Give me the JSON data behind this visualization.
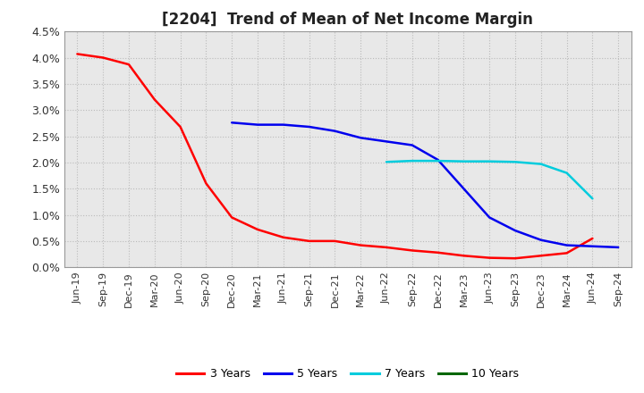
{
  "title": "[2204]  Trend of Mean of Net Income Margin",
  "x_labels": [
    "Jun-19",
    "Sep-19",
    "Dec-19",
    "Mar-20",
    "Jun-20",
    "Sep-20",
    "Dec-20",
    "Mar-21",
    "Jun-21",
    "Sep-21",
    "Dec-21",
    "Mar-22",
    "Jun-22",
    "Sep-22",
    "Dec-22",
    "Mar-23",
    "Jun-23",
    "Sep-23",
    "Dec-23",
    "Mar-24",
    "Jun-24",
    "Sep-24"
  ],
  "series": {
    "3 Years": {
      "color": "#FF0000",
      "data": [
        4.07,
        4.0,
        3.87,
        3.2,
        2.68,
        1.6,
        0.95,
        0.72,
        0.57,
        0.5,
        0.5,
        0.42,
        0.38,
        0.32,
        0.28,
        0.22,
        0.18,
        0.17,
        0.22,
        0.27,
        0.55,
        null
      ]
    },
    "5 Years": {
      "color": "#0000EE",
      "data": [
        null,
        null,
        null,
        null,
        null,
        null,
        2.76,
        2.72,
        2.72,
        2.68,
        2.6,
        2.47,
        2.4,
        2.33,
        2.05,
        1.5,
        0.95,
        0.7,
        0.52,
        0.42,
        0.4,
        0.38
      ]
    },
    "7 Years": {
      "color": "#00CCDD",
      "data": [
        null,
        null,
        null,
        null,
        null,
        null,
        null,
        null,
        null,
        null,
        null,
        null,
        2.01,
        2.03,
        2.03,
        2.02,
        2.02,
        2.01,
        1.97,
        1.8,
        1.31,
        null
      ]
    },
    "10 Years": {
      "color": "#006600",
      "data": [
        null,
        null,
        null,
        null,
        null,
        null,
        null,
        null,
        null,
        null,
        null,
        null,
        null,
        null,
        null,
        null,
        null,
        null,
        null,
        null,
        null,
        null
      ]
    }
  },
  "ylim": [
    0.0,
    0.045
  ],
  "yticks": [
    0.0,
    0.005,
    0.01,
    0.015,
    0.02,
    0.025,
    0.03,
    0.035,
    0.04,
    0.045
  ],
  "ytick_labels": [
    "0.0%",
    "0.5%",
    "1.0%",
    "1.5%",
    "2.0%",
    "2.5%",
    "3.0%",
    "3.5%",
    "4.0%",
    "4.5%"
  ],
  "background_color": "#FFFFFF",
  "plot_bg_color": "#E8E8E8",
  "grid_color": "#BBBBBB",
  "title_fontsize": 12,
  "legend_entries": [
    "3 Years",
    "5 Years",
    "7 Years",
    "10 Years"
  ],
  "legend_colors": [
    "#FF0000",
    "#0000EE",
    "#00CCDD",
    "#006600"
  ]
}
